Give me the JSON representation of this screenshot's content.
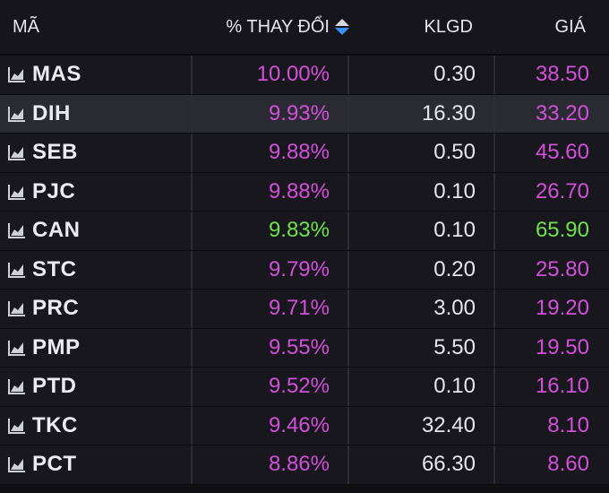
{
  "header": {
    "code": "MÃ",
    "change": "% THAY ĐỔI",
    "volume": "KLGD",
    "price": "GIÁ"
  },
  "colors": {
    "ceiling": "#d24fd9",
    "up": "#6ee24d",
    "sort_active": "#3d8ff5"
  },
  "rows": [
    {
      "symbol": "MAS",
      "change": "10.00%",
      "volume": "0.30",
      "price": "38.50",
      "status": "ceiling"
    },
    {
      "symbol": "DIH",
      "change": "9.93%",
      "volume": "16.30",
      "price": "33.20",
      "status": "ceiling"
    },
    {
      "symbol": "SEB",
      "change": "9.88%",
      "volume": "0.50",
      "price": "45.60",
      "status": "ceiling"
    },
    {
      "symbol": "PJC",
      "change": "9.88%",
      "volume": "0.10",
      "price": "26.70",
      "status": "ceiling"
    },
    {
      "symbol": "CAN",
      "change": "9.83%",
      "volume": "0.10",
      "price": "65.90",
      "status": "up"
    },
    {
      "symbol": "STC",
      "change": "9.79%",
      "volume": "0.20",
      "price": "25.80",
      "status": "ceiling"
    },
    {
      "symbol": "PRC",
      "change": "9.71%",
      "volume": "3.00",
      "price": "19.20",
      "status": "ceiling"
    },
    {
      "symbol": "PMP",
      "change": "9.55%",
      "volume": "5.50",
      "price": "19.50",
      "status": "ceiling"
    },
    {
      "symbol": "PTD",
      "change": "9.52%",
      "volume": "0.10",
      "price": "16.10",
      "status": "ceiling"
    },
    {
      "symbol": "TKC",
      "change": "9.46%",
      "volume": "32.40",
      "price": "8.10",
      "status": "ceiling"
    },
    {
      "symbol": "PCT",
      "change": "8.86%",
      "volume": "66.30",
      "price": "8.60",
      "status": "ceiling"
    }
  ]
}
